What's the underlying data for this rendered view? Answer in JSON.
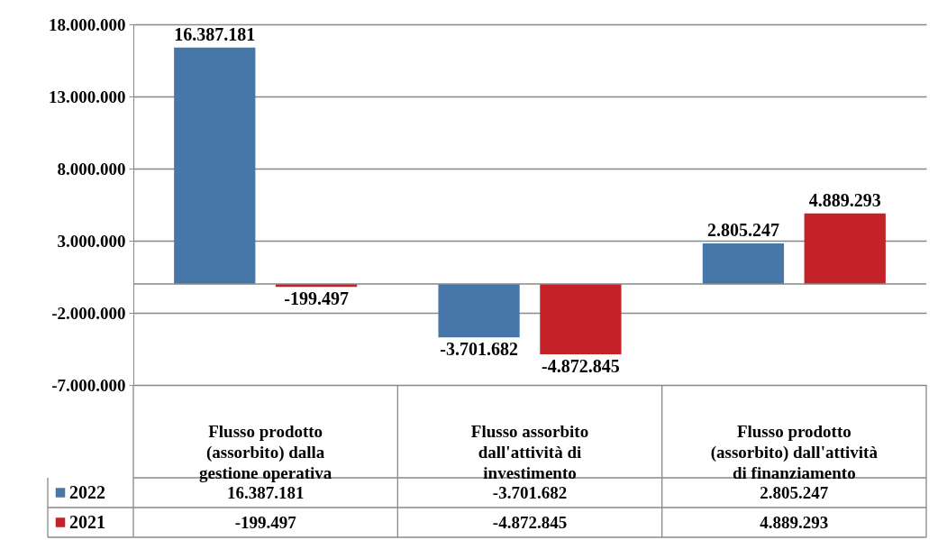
{
  "chart_data": {
    "type": "bar",
    "categories": [
      "Flusso prodotto (assorbito) dalla gestione operativa",
      "Flusso assorbito dall'attività di investimento",
      "Flusso prodotto (assorbito) dall'attività di finanziamento"
    ],
    "series": [
      {
        "name": "2022",
        "color": "#4677a8",
        "values": [
          16387181,
          -3701682,
          2805247
        ],
        "value_labels": [
          "16.387.181",
          "-3.701.682",
          "2.805.247"
        ]
      },
      {
        "name": "2021",
        "color": "#c42128",
        "values": [
          -199497,
          -4872845,
          4889293
        ],
        "value_labels": [
          "-199.497",
          "-4.872.845",
          "4.889.293"
        ]
      }
    ],
    "ylim": [
      -7000000,
      18000000
    ],
    "yticks": [
      {
        "value": -7000000,
        "label": "-7.000.000"
      },
      {
        "value": -2000000,
        "label": "-2.000.000"
      },
      {
        "value": 3000000,
        "label": "3.000.000"
      },
      {
        "value": 8000000,
        "label": "8.000.000"
      },
      {
        "value": 13000000,
        "label": "13.000.000"
      },
      {
        "value": 18000000,
        "label": "18.000.000"
      }
    ],
    "grid": "y",
    "legend": "bottom"
  }
}
